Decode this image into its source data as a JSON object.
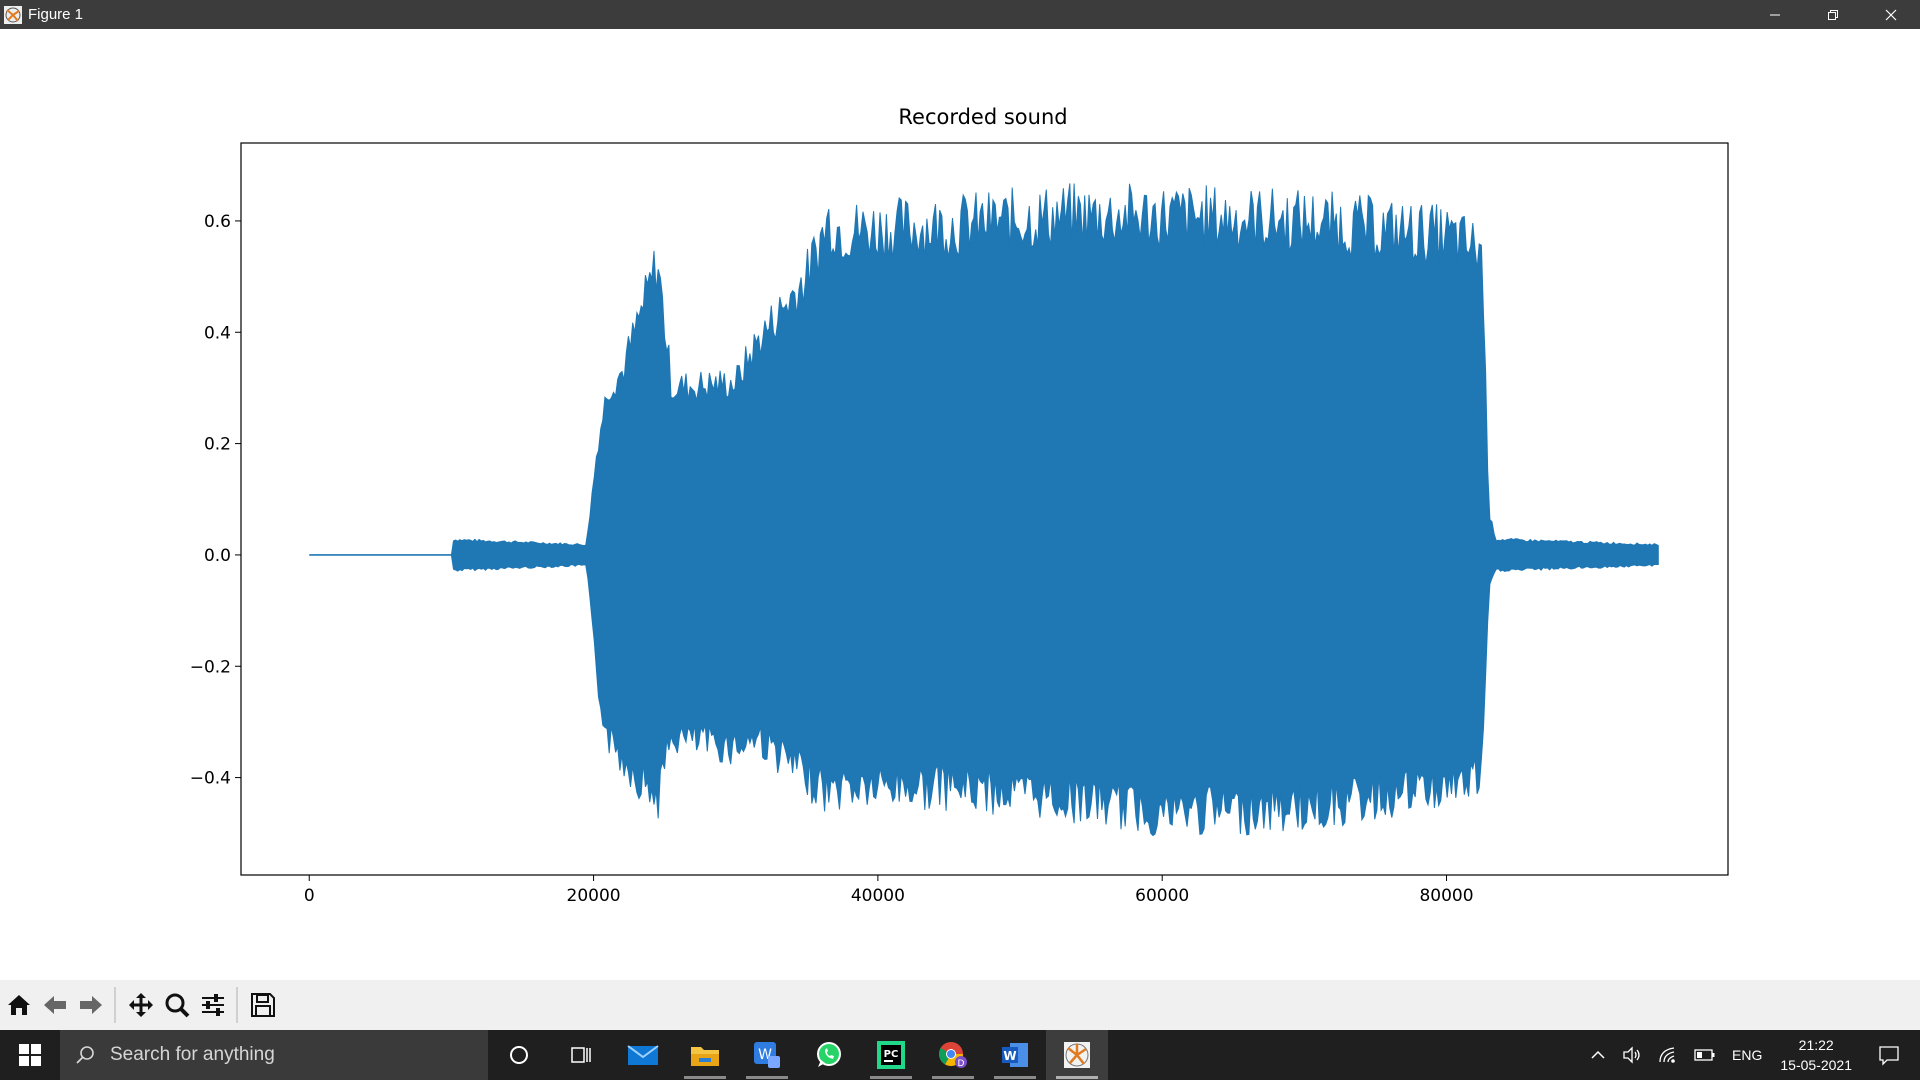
{
  "window": {
    "title": "Figure 1"
  },
  "toolbar": {
    "buttons": [
      "home",
      "back",
      "forward",
      "pan",
      "zoom",
      "configure-subplots",
      "save"
    ]
  },
  "chart_data": {
    "type": "line",
    "title": "Recorded sound",
    "xlabel": "",
    "ylabel": "",
    "xlim": [
      -4800,
      99800
    ],
    "ylim": [
      -0.575,
      0.74
    ],
    "xticks": [
      0,
      20000,
      40000,
      60000,
      80000
    ],
    "xtick_labels": [
      "0",
      "20000",
      "40000",
      "60000",
      "80000"
    ],
    "yticks": [
      -0.4,
      -0.2,
      0.0,
      0.2,
      0.4,
      0.6
    ],
    "ytick_labels": [
      "−0.4",
      "−0.2",
      "0.0",
      "0.2",
      "0.4",
      "0.6"
    ],
    "grid": false,
    "color": "#1f77b4",
    "series": [
      {
        "name": "",
        "envelope": {
          "x": [
            0,
            10000,
            10100,
            19500,
            20300,
            21000,
            22000,
            24500,
            25500,
            30000,
            31500,
            35000,
            36500,
            37500,
            45000,
            53000,
            60000,
            70000,
            80000,
            82500,
            83000,
            83500,
            84000,
            95000
          ],
          "max": [
            0.0,
            0.0,
            0.03,
            0.02,
            0.22,
            0.33,
            0.36,
            0.58,
            0.33,
            0.34,
            0.42,
            0.55,
            0.66,
            0.64,
            0.65,
            0.67,
            0.67,
            0.66,
            0.63,
            0.6,
            0.08,
            0.03,
            0.03,
            0.02
          ],
          "min": [
            0.0,
            0.0,
            -0.03,
            -0.02,
            -0.26,
            -0.36,
            -0.4,
            -0.48,
            -0.36,
            -0.38,
            -0.36,
            -0.44,
            -0.47,
            -0.46,
            -0.46,
            -0.48,
            -0.51,
            -0.5,
            -0.46,
            -0.44,
            -0.06,
            -0.03,
            -0.03,
            -0.02
          ]
        }
      }
    ]
  },
  "taskbar": {
    "search_placeholder": "Search for anything",
    "apps": [
      "cortana",
      "task-view",
      "mail",
      "file-explorer",
      "word-wps",
      "whatsapp",
      "pycharm",
      "chrome",
      "word",
      "matplotlib-figure"
    ],
    "lang": "ENG",
    "time": "21:22",
    "date": "15-05-2021"
  }
}
